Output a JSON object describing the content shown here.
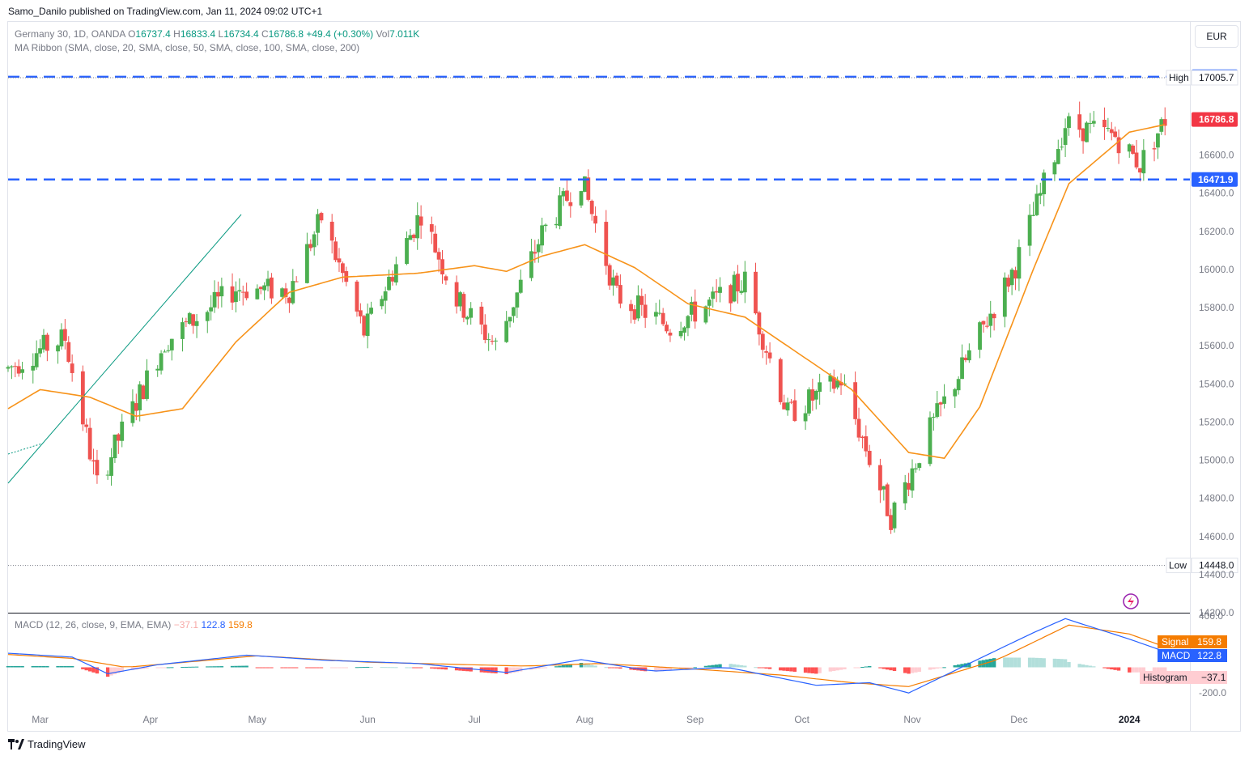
{
  "publisher": "Samo_Danilo published on TradingView.com, Jan 11, 2024 09:02 UTC+1",
  "currency": "EUR",
  "legend": {
    "symbol": "Germany 30, 1D, OANDA",
    "o_label": "O",
    "o": "16737.4",
    "h_label": "H",
    "h": "16833.4",
    "l_label": "L",
    "l": "16734.4",
    "c_label": "C",
    "c": "16786.8",
    "change": "+49.4 (+0.30%)",
    "vol_label": "Vol",
    "vol": "7.011K",
    "ma_ribbon": "MA Ribbon (SMA, close, 20, SMA, close, 50, SMA, close, 100, SMA, close, 200)"
  },
  "macd_legend": {
    "title": "MACD (12, 26, close, 9, EMA, EMA)",
    "histogram": "−37.1",
    "macd": "122.8",
    "signal": "159.8"
  },
  "footer": {
    "brand": "TradingView",
    "logo": "tradingview-logo-icon"
  },
  "colors": {
    "up": "#089981",
    "down": "#f23645",
    "candle_up": "#4caf50",
    "candle_down": "#ef5350",
    "ma": "#f7931a",
    "level": "#2962ff",
    "macd": "#2962ff",
    "signal": "#f57c00",
    "hist_up_strong": "#26a69a",
    "hist_up_weak": "#b2dfdb",
    "hist_down_strong": "#ff5252",
    "hist_down_weak": "#ffcdd2"
  },
  "chart_data": [
    {
      "type": "candlestick",
      "title": "Germany 30, 1D, OANDA",
      "ylim": [
        14200,
        17150
      ],
      "y_ticks": [
        14200,
        14400,
        14600,
        14800,
        15000,
        15200,
        15400,
        15600,
        15800,
        16000,
        16200,
        16400,
        16600
      ],
      "x_ticks": [
        "Mar",
        "Apr",
        "May",
        "Jun",
        "Jul",
        "Aug",
        "Sep",
        "Oct",
        "Nov",
        "Dec",
        "2024"
      ],
      "levels": [
        {
          "label": "High",
          "value": 17005.7,
          "value_text": "17005.7"
        },
        {
          "label": "Low",
          "value": 14448.0,
          "value_text": "14448.0"
        }
      ],
      "horizontal_lines": [
        {
          "value": 17010.8,
          "value_text": "17010.8"
        },
        {
          "value": 16471.9,
          "value_text": "16471.9"
        }
      ],
      "last_price": {
        "value": 16786.8,
        "value_text": "16786.8"
      },
      "series": [
        {
          "name": "MA Ribbon 20",
          "anchors": [
            [
              "2023-02-20",
              15270
            ],
            [
              "2023-03-01",
              15370
            ],
            [
              "2023-03-15",
              15330
            ],
            [
              "2023-03-28",
              15230
            ],
            [
              "2023-04-10",
              15270
            ],
            [
              "2023-04-25",
              15620
            ],
            [
              "2023-05-10",
              15880
            ],
            [
              "2023-05-25",
              15960
            ],
            [
              "2023-06-15",
              15980
            ],
            [
              "2023-07-01",
              16020
            ],
            [
              "2023-07-10",
              15990
            ],
            [
              "2023-07-20",
              16070
            ],
            [
              "2023-08-01",
              16130
            ],
            [
              "2023-08-15",
              16010
            ],
            [
              "2023-08-30",
              15820
            ],
            [
              "2023-09-15",
              15750
            ],
            [
              "2023-09-30",
              15560
            ],
            [
              "2023-10-15",
              15370
            ],
            [
              "2023-10-31",
              15040
            ],
            [
              "2023-11-10",
              15010
            ],
            [
              "2023-11-20",
              15280
            ],
            [
              "2023-12-05",
              16000
            ],
            [
              "2023-12-15",
              16450
            ],
            [
              "2024-01-01",
              16720
            ],
            [
              "2024-01-11",
              16760
            ]
          ]
        },
        {
          "name": "Price anchors",
          "anchors": [
            [
              "2023-02-20",
              15480
            ],
            [
              "2023-03-01",
              15580
            ],
            [
              "2023-03-08",
              15640
            ],
            [
              "2023-03-17",
              14870
            ],
            [
              "2023-03-24",
              15150
            ],
            [
              "2023-04-05",
              15620
            ],
            [
              "2023-04-25",
              15900
            ],
            [
              "2023-05-10",
              15890
            ],
            [
              "2023-05-19",
              16270
            ],
            [
              "2023-05-31",
              15670
            ],
            [
              "2023-06-16",
              16300
            ],
            [
              "2023-06-26",
              15840
            ],
            [
              "2023-07-07",
              15600
            ],
            [
              "2023-07-20",
              16190
            ],
            [
              "2023-07-31",
              16480
            ],
            [
              "2023-08-10",
              15860
            ],
            [
              "2023-08-25",
              15700
            ],
            [
              "2023-09-05",
              15820
            ],
            [
              "2023-09-15",
              15940
            ],
            [
              "2023-09-27",
              15240
            ],
            [
              "2023-10-12",
              15420
            ],
            [
              "2023-10-26",
              14700
            ],
            [
              "2023-11-06",
              15160
            ],
            [
              "2023-11-30",
              16020
            ],
            [
              "2023-12-14",
              16760
            ],
            [
              "2023-12-28",
              16700
            ],
            [
              "2024-01-04",
              16550
            ],
            [
              "2024-01-11",
              16786.8
            ]
          ]
        }
      ]
    },
    {
      "type": "bar",
      "title": "MACD (12, 26, close, 9, EMA, EMA)",
      "ylim": [
        -300,
        420
      ],
      "y_ticks": [
        -200,
        400
      ],
      "series": [
        {
          "name": "MACD",
          "value_text": "122.8",
          "anchors": [
            [
              "2023-02-20",
              110
            ],
            [
              "2023-03-10",
              80
            ],
            [
              "2023-03-20",
              -50
            ],
            [
              "2023-04-03",
              20
            ],
            [
              "2023-04-28",
              95
            ],
            [
              "2023-05-20",
              55
            ],
            [
              "2023-06-15",
              30
            ],
            [
              "2023-07-10",
              -40
            ],
            [
              "2023-07-31",
              60
            ],
            [
              "2023-08-20",
              -30
            ],
            [
              "2023-09-10",
              0
            ],
            [
              "2023-10-05",
              -140
            ],
            [
              "2023-10-20",
              -120
            ],
            [
              "2023-10-31",
              -200
            ],
            [
              "2023-11-20",
              70
            ],
            [
              "2023-12-05",
              270
            ],
            [
              "2023-12-14",
              380
            ],
            [
              "2024-01-01",
              220
            ],
            [
              "2024-01-11",
              122.8
            ]
          ]
        },
        {
          "name": "Signal",
          "value_text": "159.8",
          "anchors": [
            [
              "2023-02-20",
              100
            ],
            [
              "2023-03-10",
              70
            ],
            [
              "2023-03-25",
              0
            ],
            [
              "2023-04-15",
              50
            ],
            [
              "2023-05-01",
              90
            ],
            [
              "2023-06-01",
              40
            ],
            [
              "2023-07-15",
              10
            ],
            [
              "2023-08-05",
              30
            ],
            [
              "2023-08-30",
              -10
            ],
            [
              "2023-09-25",
              -60
            ],
            [
              "2023-10-15",
              -120
            ],
            [
              "2023-10-31",
              -150
            ],
            [
              "2023-11-25",
              60
            ],
            [
              "2023-12-15",
              330
            ],
            [
              "2024-01-01",
              260
            ],
            [
              "2024-01-11",
              159.8
            ]
          ]
        },
        {
          "name": "Histogram",
          "value_text": "−37.1"
        }
      ]
    }
  ]
}
